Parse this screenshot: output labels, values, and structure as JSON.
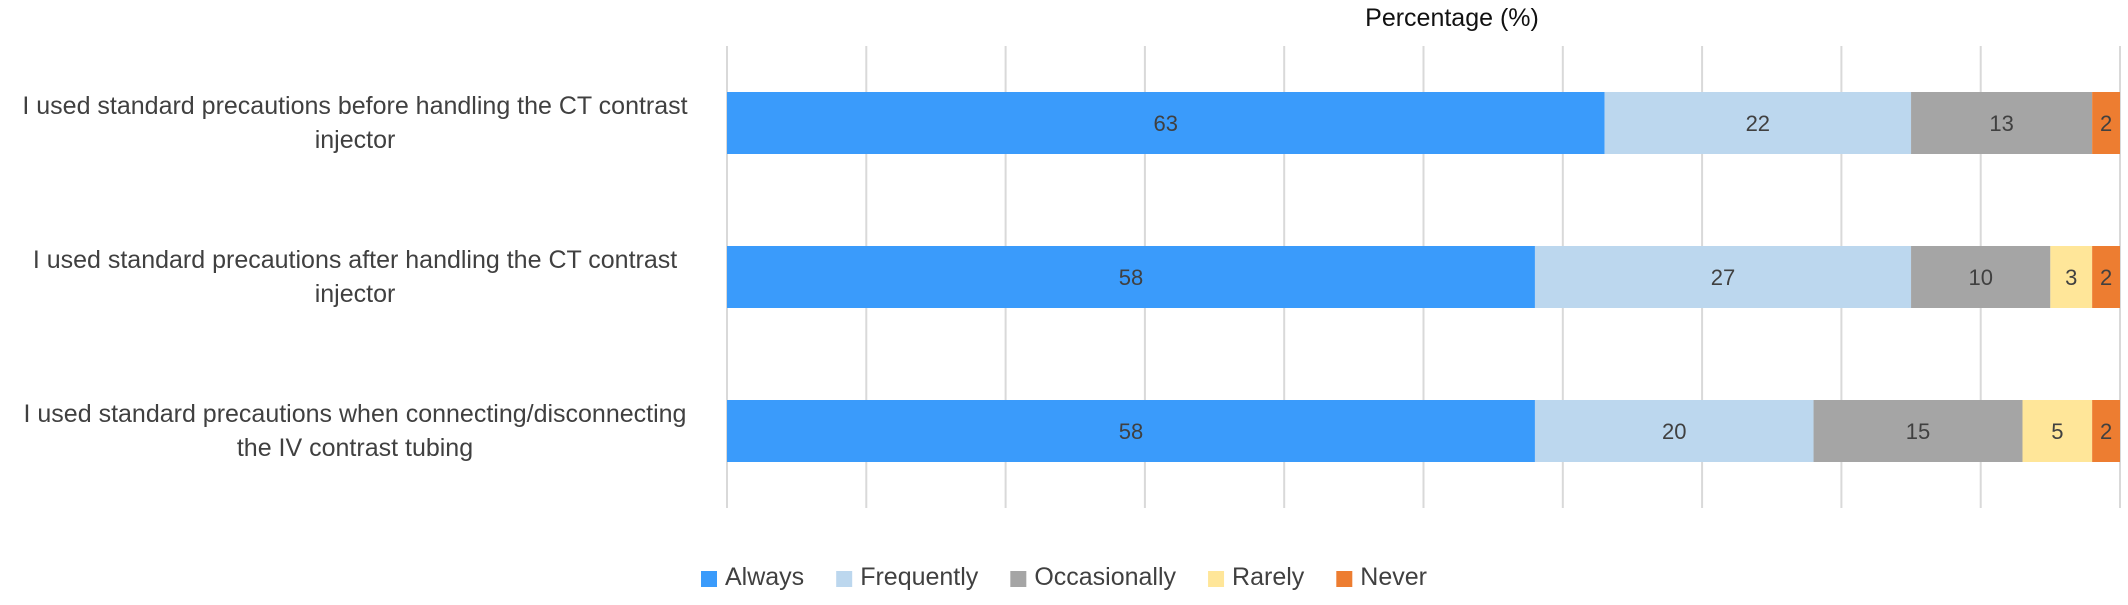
{
  "chart_data": {
    "type": "bar",
    "orientation": "horizontal",
    "stacked": true,
    "title": "",
    "xlabel": "Percentage (%)",
    "ylabel": "",
    "xlim": [
      0,
      100
    ],
    "grid": true,
    "legend_position": "bottom",
    "categories": [
      [
        "I used standard precautions before handling the CT contrast",
        "injector"
      ],
      [
        "I used standard precautions after handling the CT contrast",
        "injector"
      ],
      [
        "I used standard precautions when connecting/disconnecting",
        "the IV contrast tubing"
      ]
    ],
    "series": [
      {
        "name": "Always",
        "color": "#3a9bfb",
        "values": [
          63,
          58,
          58
        ]
      },
      {
        "name": "Frequently",
        "color": "#bcd7ee",
        "values": [
          22,
          27,
          20
        ]
      },
      {
        "name": "Occasionally",
        "color": "#a5a5a5",
        "values": [
          13,
          10,
          15
        ]
      },
      {
        "name": "Rarely",
        "color": "#ffe699",
        "values": [
          0,
          3,
          5
        ]
      },
      {
        "name": "Never",
        "color": "#ed7d31",
        "values": [
          2,
          2,
          2
        ]
      }
    ]
  }
}
